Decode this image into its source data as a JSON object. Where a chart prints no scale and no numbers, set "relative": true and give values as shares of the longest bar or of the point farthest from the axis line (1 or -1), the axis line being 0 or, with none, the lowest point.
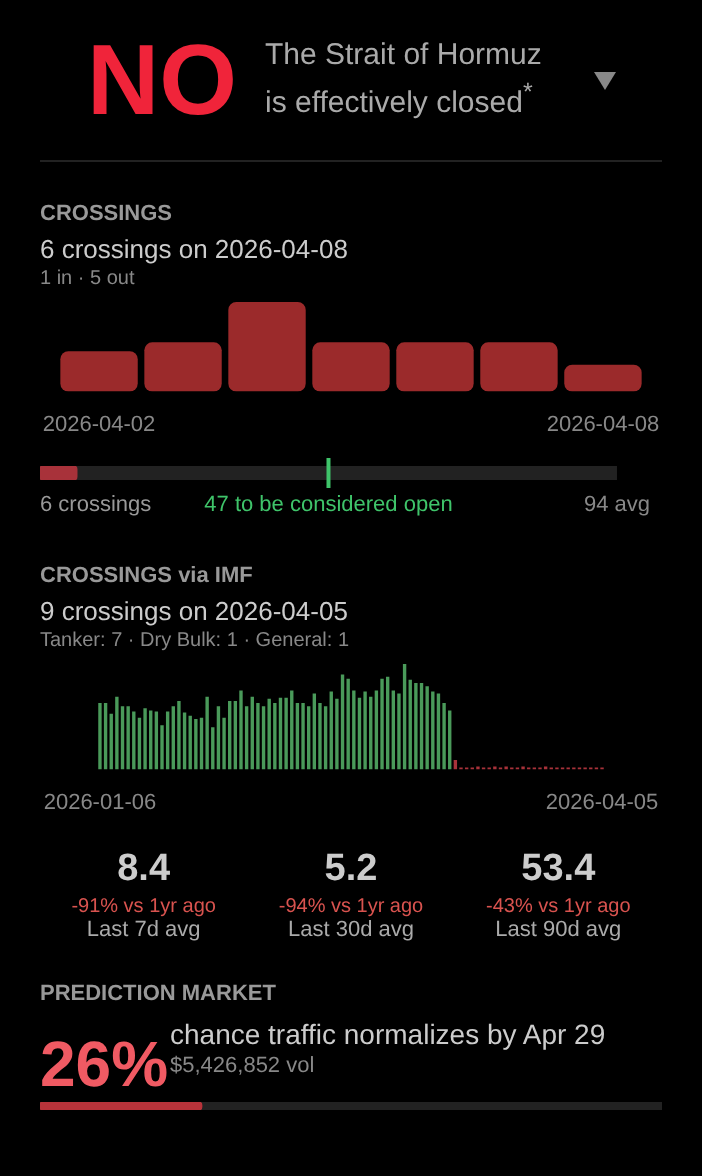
{
  "chart_data": [
    {
      "type": "other",
      "title": "NO",
      "subtitle": "The Strait of Hormuz is effectively closed$^{*}$"
    },
    {
      "type": "bar",
      "title": "CROSSINGS",
      "subtitle": "6 crossings on 2026-04-08",
      "annotations": [
        "1 in · 5 out"
      ],
      "relative": true,
      "categories": [
        "2026-04-02",
        null,
        null,
        null,
        null,
        null,
        "2026-04-08"
      ],
      "values": [
        0.45,
        0.55,
        1,
        0.55,
        0.55,
        0.55,
        0.3
      ],
      "color": "#9b2a2b"
    },
    {
      "type": "bar",
      "orientation": "horizontal",
      "categories": [
        null
      ],
      "values": [
        6
      ],
      "color": "#a8323a",
      "xlim": [
        0,
        94
      ],
      "tick_labels": "x",
      "xticks": [
        {
          "value": 47,
          "label": "47 to be considered open"
        },
        {
          "value": 94,
          "label": "94 avg"
        }
      ],
      "annotations": [
        "6 crossings"
      ],
      "bands": [
        {
          "axis": "x",
          "from": 0,
          "to": 94,
          "color": "#222222"
        }
      ],
      "ref_lines": [
        {
          "axis": "x",
          "value": 47,
          "color": "#3fc46a"
        }
      ]
    },
    {
      "type": "bar",
      "title": "CROSSINGS via IMF",
      "subtitle": "9 crossings on 2026-04-05",
      "annotations": [
        "Tanker: 7 · Dry Bulk: 1 · General: 1"
      ],
      "relative": true,
      "categories": [
        "2026-01-06",
        null,
        null,
        null,
        null,
        null,
        null,
        null,
        null,
        null,
        null,
        null,
        null,
        null,
        null,
        null,
        null,
        null,
        null,
        null,
        null,
        null,
        null,
        null,
        null,
        null,
        null,
        null,
        null,
        null,
        null,
        null,
        null,
        null,
        null,
        null,
        null,
        null,
        null,
        null,
        null,
        null,
        null,
        null,
        null,
        null,
        null,
        null,
        null,
        null,
        null,
        null,
        null,
        null,
        null,
        null,
        null,
        null,
        null,
        null,
        null,
        null,
        null,
        null,
        null,
        null,
        null,
        null,
        null,
        null,
        null,
        null,
        null,
        null,
        null,
        null,
        null,
        null,
        null,
        null,
        null,
        null,
        null,
        null,
        null,
        null,
        null,
        null,
        null,
        "2026-04-05"
      ],
      "series": [
        {
          "color": "#4a9a5a",
          "values": [
            0.63,
            0.63,
            0.53,
            0.69,
            0.6,
            0.6,
            0.55,
            0.49,
            0.58,
            0.56,
            0.55,
            0.42,
            0.55,
            0.6,
            0.65,
            0.54,
            0.51,
            0.48,
            0.49,
            0.69,
            0.4,
            0.6,
            0.49,
            0.65,
            0.65,
            0.75,
            0.6,
            0.69,
            0.63,
            0.6,
            0.67,
            0.63,
            0.68,
            0.68,
            0.75,
            0.63,
            0.63,
            0.6,
            0.72,
            0.63,
            0.6,
            0.74,
            0.67,
            0.9,
            0.86,
            0.75,
            0.68,
            0.74,
            0.69,
            0.75,
            0.86,
            0.88,
            0.75,
            0.72,
            1,
            0.85,
            0.82,
            0.82,
            0.79,
            0.74,
            0.72,
            0.63,
            0.56,
            null,
            null,
            null,
            null,
            null,
            null,
            null,
            null,
            null,
            null,
            null,
            null,
            null,
            null,
            null,
            null,
            null,
            null,
            null,
            null,
            null,
            null,
            null,
            null,
            null,
            null,
            null
          ]
        },
        {
          "color": "#a8323a",
          "values": [
            null,
            null,
            null,
            null,
            null,
            null,
            null,
            null,
            null,
            null,
            null,
            null,
            null,
            null,
            null,
            null,
            null,
            null,
            null,
            null,
            null,
            null,
            null,
            null,
            null,
            null,
            null,
            null,
            null,
            null,
            null,
            null,
            null,
            null,
            null,
            null,
            null,
            null,
            null,
            null,
            null,
            null,
            null,
            null,
            null,
            null,
            null,
            null,
            null,
            null,
            null,
            null,
            null,
            null,
            null,
            null,
            null,
            null,
            null,
            null,
            null,
            null,
            null,
            0.09,
            0.02,
            0.02,
            0.02,
            0.03,
            0.02,
            0.02,
            0.03,
            0.02,
            0.03,
            0.02,
            0.02,
            0.03,
            0.02,
            0.02,
            0.02,
            0.03,
            0.02,
            0.02,
            0.02,
            0.02,
            0.02,
            0.02,
            0.02,
            0.02,
            0.02,
            0.02
          ]
        }
      ]
    },
    {
      "type": "other",
      "annotations": [
        "8.4",
        "-91% vs 1yr ago",
        "Last 7d avg",
        "5.2",
        "-94% vs 1yr ago",
        "Last 30d avg",
        "53.4",
        "-43% vs 1yr ago",
        "Last 90d avg"
      ]
    },
    {
      "type": "other",
      "title": "PREDICTION MARKET",
      "subtitle": "chance traffic normalizes by Apr 29",
      "annotations": [
        "$5,426,852 vol"
      ],
      "categories": [
        null
      ],
      "values": [
        26
      ],
      "color": "#b8333a",
      "value_labels": [
        "26%"
      ]
    }
  ]
}
